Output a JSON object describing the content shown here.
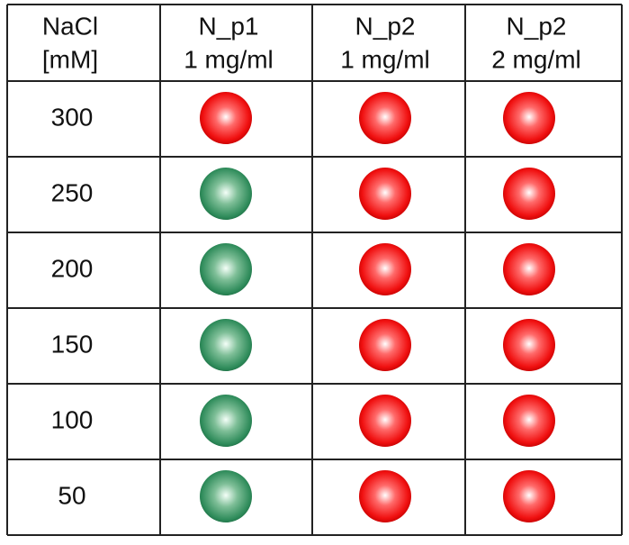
{
  "table": {
    "header": [
      [
        "NaCl",
        "[mM]"
      ],
      [
        "N_p1",
        "1 mg/ml"
      ],
      [
        "N_p2",
        "1 mg/ml"
      ],
      [
        "N_p2",
        "2 mg/ml"
      ]
    ],
    "rows": [
      300,
      250,
      200,
      150,
      100,
      50
    ]
  }
}
